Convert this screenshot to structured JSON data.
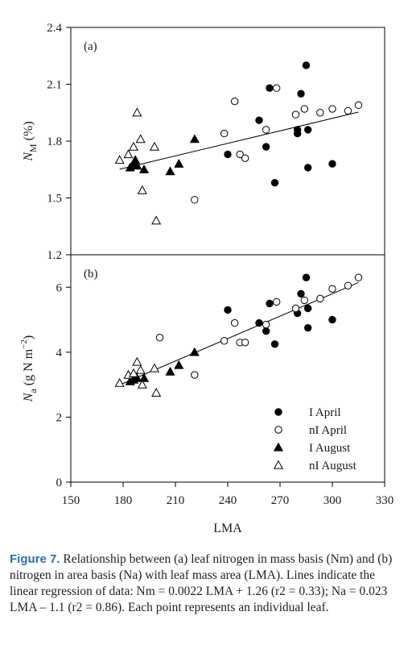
{
  "chart_data": [
    {
      "type": "scatter",
      "panel_label": "(a)",
      "ylabel": "N_M (%)",
      "ylabel_parts": {
        "main": "N",
        "sub": "M",
        "rest": " (%)"
      },
      "xlabel": "",
      "xlim": [
        150,
        330
      ],
      "ylim": [
        1.2,
        2.4
      ],
      "yticks": [
        1.2,
        1.5,
        1.8,
        2.1,
        2.4
      ],
      "ytick_labels": [
        "1.2",
        "1.5",
        "1.8",
        "2.1",
        "2.4"
      ],
      "regression": {
        "slope": 0.0022,
        "intercept": 1.26,
        "x_range": [
          178,
          315
        ]
      },
      "series": [
        {
          "name": "I April",
          "marker": "filled-circle",
          "points": [
            [
              240,
              1.73
            ],
            [
              258,
              1.91
            ],
            [
              262,
              1.77
            ],
            [
              264,
              2.08
            ],
            [
              267,
              1.58
            ],
            [
              280,
              1.84
            ],
            [
              280,
              1.86
            ],
            [
              282,
              2.05
            ],
            [
              285,
              2.2
            ],
            [
              286,
              1.86
            ],
            [
              286,
              1.66
            ],
            [
              300,
              1.68
            ]
          ]
        },
        {
          "name": "nI April",
          "marker": "open-circle",
          "points": [
            [
              221,
              1.49
            ],
            [
              238,
              1.84
            ],
            [
              244,
              2.01
            ],
            [
              247,
              1.73
            ],
            [
              250,
              1.71
            ],
            [
              262,
              1.86
            ],
            [
              268,
              2.08
            ],
            [
              279,
              1.94
            ],
            [
              284,
              1.97
            ],
            [
              293,
              1.95
            ],
            [
              300,
              1.97
            ],
            [
              309,
              1.96
            ],
            [
              315,
              1.99
            ]
          ]
        },
        {
          "name": "I August",
          "marker": "filled-triangle",
          "points": [
            [
              184,
              1.66
            ],
            [
              186,
              1.68
            ],
            [
              187,
              1.7
            ],
            [
              188,
              1.67
            ],
            [
              192,
              1.65
            ],
            [
              207,
              1.64
            ],
            [
              212,
              1.68
            ],
            [
              221,
              1.81
            ]
          ]
        },
        {
          "name": "nI August",
          "marker": "open-triangle",
          "points": [
            [
              178,
              1.7
            ],
            [
              183,
              1.73
            ],
            [
              186,
              1.77
            ],
            [
              188,
              1.95
            ],
            [
              190,
              1.81
            ],
            [
              191,
              1.54
            ],
            [
              198,
              1.77
            ],
            [
              199,
              1.38
            ]
          ]
        }
      ]
    },
    {
      "type": "scatter",
      "panel_label": "(b)",
      "ylabel": "N_a (g N m^-2)",
      "ylabel_parts": {
        "main": "N",
        "sub": "a",
        "rest": " (g N m",
        "sup": "−2",
        "end": ")"
      },
      "xlabel": "LMA",
      "xlim": [
        150,
        330
      ],
      "ylim": [
        0,
        7
      ],
      "yticks": [
        0,
        2,
        4,
        6
      ],
      "ytick_labels": [
        "0",
        "2",
        "4",
        "6"
      ],
      "xticks": [
        150,
        180,
        210,
        240,
        270,
        300,
        330
      ],
      "xtick_labels": [
        "150",
        "180",
        "210",
        "240",
        "270",
        "300",
        "330"
      ],
      "regression": {
        "slope": 0.023,
        "intercept": -1.1,
        "x_range": [
          178,
          315
        ]
      },
      "series": [
        {
          "name": "I April",
          "marker": "filled-circle",
          "points": [
            [
              240,
              5.3
            ],
            [
              258,
              4.9
            ],
            [
              262,
              4.65
            ],
            [
              264,
              5.5
            ],
            [
              267,
              4.25
            ],
            [
              280,
              5.2
            ],
            [
              282,
              5.8
            ],
            [
              285,
              6.3
            ],
            [
              286,
              5.35
            ],
            [
              286,
              4.75
            ],
            [
              300,
              5.0
            ]
          ]
        },
        {
          "name": "nI April",
          "marker": "open-circle",
          "points": [
            [
              201,
              4.45
            ],
            [
              221,
              3.3
            ],
            [
              238,
              4.35
            ],
            [
              244,
              4.9
            ],
            [
              247,
              4.3
            ],
            [
              250,
              4.3
            ],
            [
              262,
              4.85
            ],
            [
              268,
              5.55
            ],
            [
              279,
              5.35
            ],
            [
              284,
              5.6
            ],
            [
              293,
              5.65
            ],
            [
              300,
              5.95
            ],
            [
              309,
              6.05
            ],
            [
              315,
              6.3
            ]
          ]
        },
        {
          "name": "I August",
          "marker": "filled-triangle",
          "points": [
            [
              184,
              3.1
            ],
            [
              186,
              3.15
            ],
            [
              188,
              3.2
            ],
            [
              192,
              3.2
            ],
            [
              207,
              3.4
            ],
            [
              212,
              3.6
            ],
            [
              221,
              4.0
            ]
          ]
        },
        {
          "name": "nI August",
          "marker": "open-triangle",
          "points": [
            [
              178,
              3.05
            ],
            [
              183,
              3.3
            ],
            [
              186,
              3.35
            ],
            [
              188,
              3.7
            ],
            [
              190,
              3.45
            ],
            [
              191,
              3.0
            ],
            [
              198,
              3.5
            ],
            [
              199,
              2.75
            ]
          ]
        }
      ],
      "legend": {
        "placement": "bottom-right",
        "entries": [
          "I April",
          "nI April",
          "I August",
          "nI August"
        ]
      }
    }
  ],
  "caption": {
    "figure_label": "Figure 7.",
    "text": "Relationship between (a) leaf nitrogen in mass basis (Nm) and (b) nitrogen in area basis (Na) with leaf mass area (LMA). Lines indicate the linear regression of data: Nm = 0.0022 LMA + 1.26 (r2 = 0.33); Na = 0.023 LMA – 1.1 (r2 = 0.86). Each point represents an individual leaf."
  }
}
